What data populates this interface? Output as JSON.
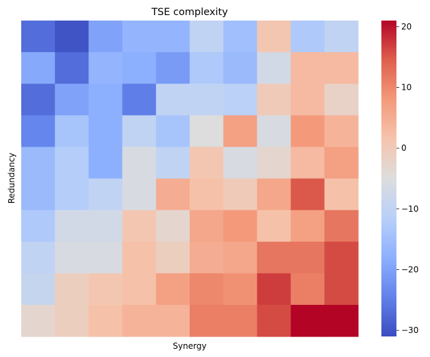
{
  "chart_data": {
    "type": "heatmap",
    "title": "TSE complexity",
    "xlabel": "Synergy",
    "ylabel": "Redundancy",
    "colormap": "coolwarm",
    "vmin": -31,
    "vmax": 21,
    "colorbar_ticks": [
      20,
      10,
      0,
      -10,
      -20,
      -30
    ],
    "rows": 10,
    "cols": 10,
    "values": [
      [
        -27,
        -30,
        -20,
        -17,
        -17,
        -10,
        -15,
        1,
        -13,
        -10
      ],
      [
        -19,
        -27,
        -17,
        -18,
        -21,
        -13,
        -16,
        -7,
        3,
        3
      ],
      [
        -27,
        -20,
        -18,
        -25,
        -10,
        -10,
        -11,
        0,
        3,
        -2
      ],
      [
        -24,
        -14,
        -18,
        -10,
        -14,
        -5,
        7,
        -6,
        8,
        4
      ],
      [
        -16,
        -12,
        -18,
        -6,
        -10,
        1,
        -6,
        -3,
        3,
        7
      ],
      [
        -16,
        -12,
        -10,
        -6,
        5,
        2,
        0,
        6,
        15,
        2
      ],
      [
        -13,
        -7,
        -7,
        1,
        -3,
        6,
        8,
        2,
        7,
        12
      ],
      [
        -10,
        -6,
        -6,
        2,
        -1,
        5,
        6,
        12,
        12,
        16
      ],
      [
        -9,
        -1,
        1,
        2,
        7,
        10,
        9,
        17,
        11,
        16
      ],
      [
        -3,
        -1,
        2,
        4,
        4,
        11,
        11,
        16,
        21,
        21
      ]
    ]
  }
}
